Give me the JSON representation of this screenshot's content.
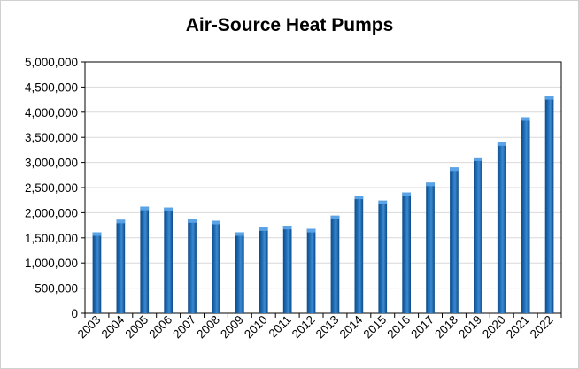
{
  "chart_data": {
    "type": "bar",
    "title": "Air-Source Heat Pumps",
    "xlabel": "",
    "ylabel": "",
    "categories": [
      "2003",
      "2004",
      "2005",
      "2006",
      "2007",
      "2008",
      "2009",
      "2010",
      "2011",
      "2012",
      "2013",
      "2014",
      "2015",
      "2016",
      "2017",
      "2018",
      "2019",
      "2020",
      "2021",
      "2022"
    ],
    "values": [
      1610000,
      1860000,
      2120000,
      2100000,
      1870000,
      1840000,
      1610000,
      1710000,
      1740000,
      1680000,
      1940000,
      2340000,
      2240000,
      2400000,
      2600000,
      2900000,
      3100000,
      3400000,
      3900000,
      4320000
    ],
    "ylim": [
      0,
      5000000
    ],
    "yticks": [
      0,
      500000,
      1000000,
      1500000,
      2000000,
      2500000,
      3000000,
      3500000,
      4000000,
      4500000,
      5000000
    ],
    "ytick_labels": [
      "0",
      "500,000",
      "1,000,000",
      "1,500,000",
      "2,000,000",
      "2,500,000",
      "3,000,000",
      "3,500,000",
      "4,000,000",
      "4,500,000",
      "5,000,000"
    ],
    "grid": true,
    "legend": "none",
    "colors": {
      "bar": "#1f6db5",
      "bar_dark": "#0e4a86",
      "bar_light": "#5aa3e6",
      "grid": "#d9d9d9",
      "axis": "#000000"
    }
  }
}
